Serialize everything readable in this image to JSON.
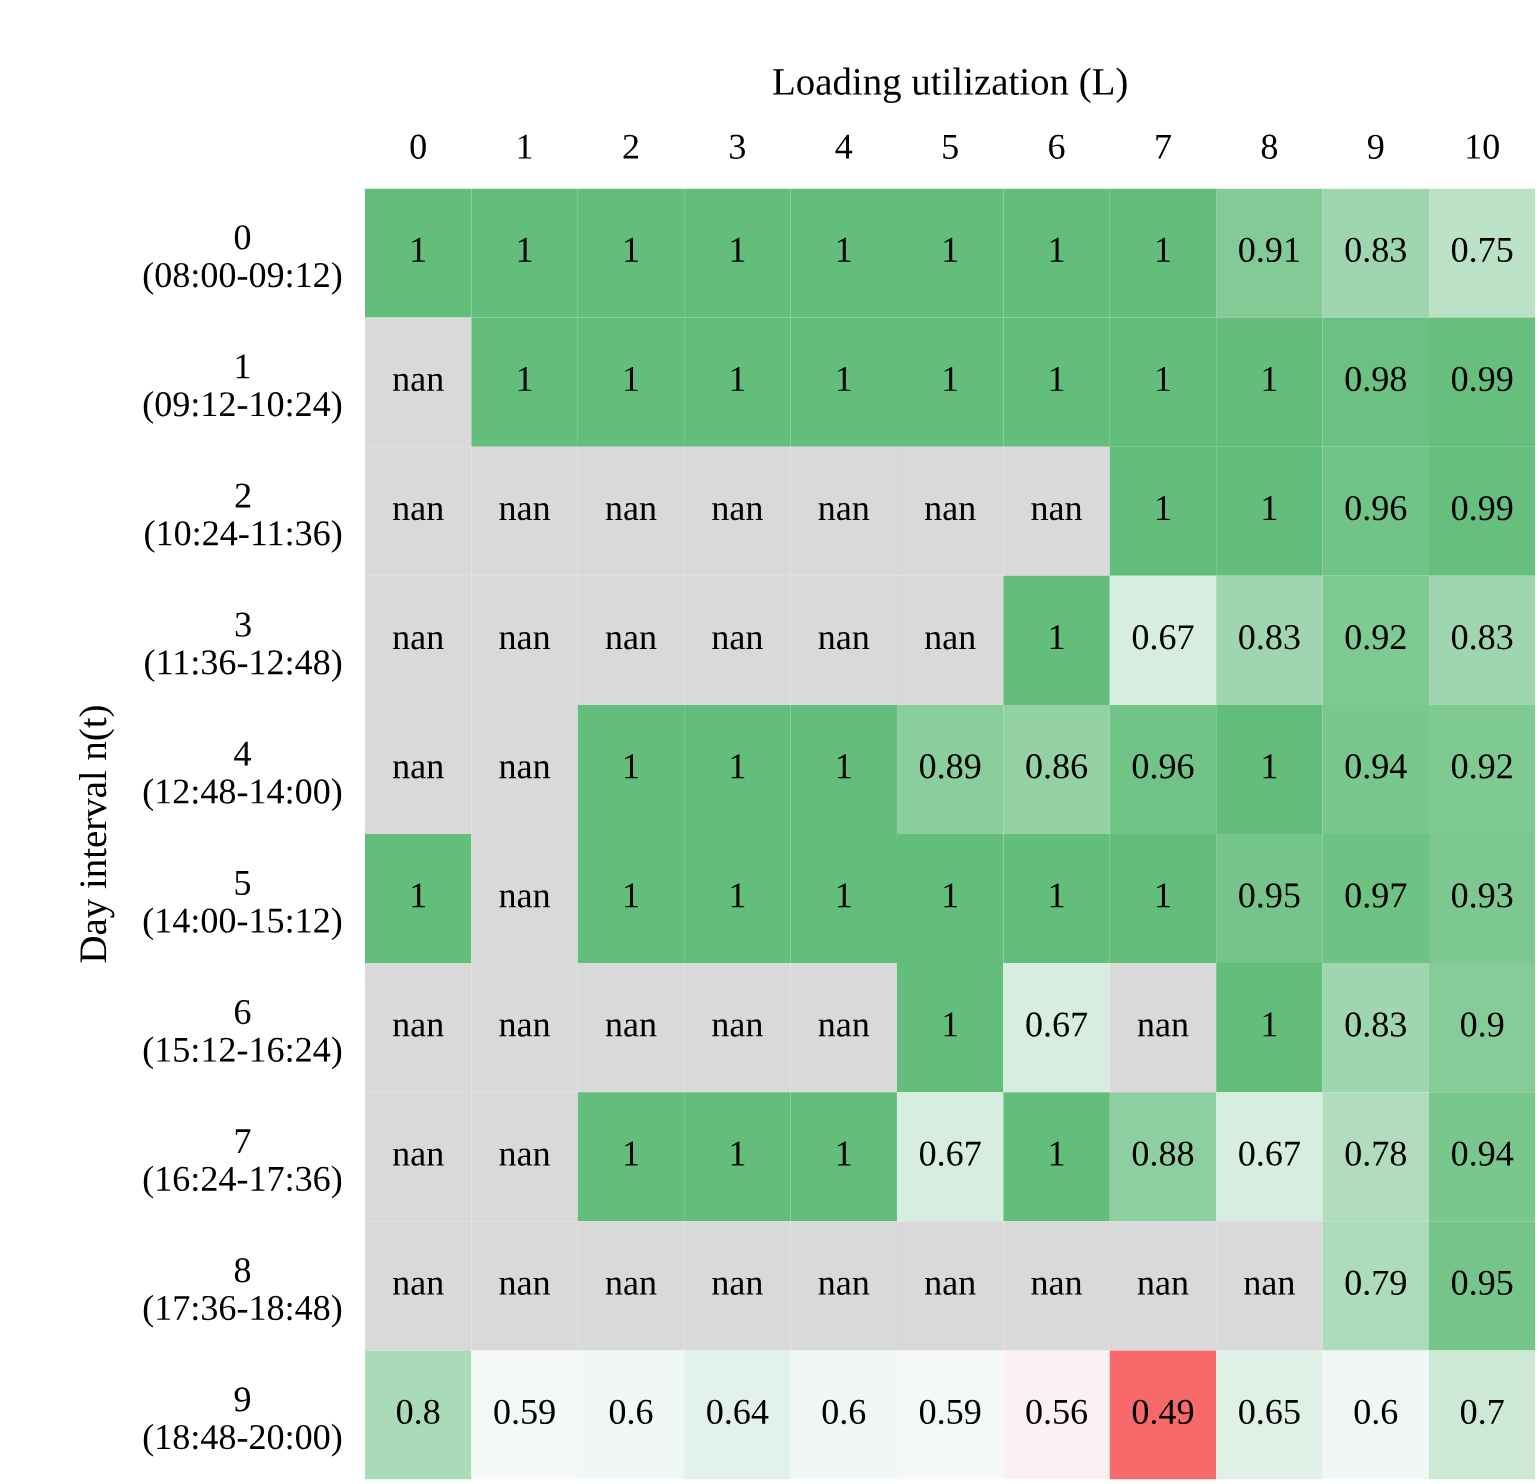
{
  "chart_data": {
    "type": "heatmap",
    "xlabel": "Loading utilization (L)",
    "ylabel": "Day interval n(t)",
    "categories": [
      "0",
      "1",
      "2",
      "3",
      "4",
      "5",
      "6",
      "7",
      "8",
      "9",
      "10"
    ],
    "y_categories": [
      "0\n(08:00-09:12)",
      "1\n(09:12-10:24)",
      "2\n(10:24-11:36)",
      "3\n(11:36-12:48)",
      "4\n(12:48-14:00)",
      "5\n(14:00-15:12)",
      "6\n(15:12-16:24)",
      "7\n(16:24-17:36)",
      "8\n(17:36-18:48)",
      "9\n(18:48-20:00)"
    ],
    "cells": [
      [
        1,
        1,
        1,
        1,
        1,
        1,
        1,
        1,
        0.91,
        0.83,
        0.75
      ],
      [
        null,
        1,
        1,
        1,
        1,
        1,
        1,
        1,
        1,
        0.98,
        0.99
      ],
      [
        null,
        null,
        null,
        null,
        null,
        null,
        null,
        1,
        1,
        0.96,
        0.99
      ],
      [
        null,
        null,
        null,
        null,
        null,
        null,
        1,
        0.67,
        0.83,
        0.92,
        0.83
      ],
      [
        null,
        null,
        1,
        1,
        1,
        0.89,
        0.86,
        0.96,
        1,
        0.94,
        0.92
      ],
      [
        1,
        null,
        1,
        1,
        1,
        1,
        1,
        1,
        0.95,
        0.97,
        0.93
      ],
      [
        null,
        null,
        null,
        null,
        null,
        1,
        0.67,
        null,
        1,
        0.83,
        0.9
      ],
      [
        null,
        null,
        1,
        1,
        1,
        0.67,
        1,
        0.88,
        0.67,
        0.78,
        0.94
      ],
      [
        null,
        null,
        null,
        null,
        null,
        null,
        null,
        null,
        null,
        0.79,
        0.95
      ],
      [
        0.8,
        0.59,
        0.6,
        0.64,
        0.6,
        0.59,
        0.56,
        0.49,
        0.65,
        0.6,
        0.7
      ]
    ],
    "cell_labels": [
      [
        "1",
        "1",
        "1",
        "1",
        "1",
        "1",
        "1",
        "1",
        "0.91",
        "0.83",
        "0.75"
      ],
      [
        "nan",
        "1",
        "1",
        "1",
        "1",
        "1",
        "1",
        "1",
        "1",
        "0.98",
        "0.99"
      ],
      [
        "nan",
        "nan",
        "nan",
        "nan",
        "nan",
        "nan",
        "nan",
        "1",
        "1",
        "0.96",
        "0.99"
      ],
      [
        "nan",
        "nan",
        "nan",
        "nan",
        "nan",
        "nan",
        "1",
        "0.67",
        "0.83",
        "0.92",
        "0.83"
      ],
      [
        "nan",
        "nan",
        "1",
        "1",
        "1",
        "0.89",
        "0.86",
        "0.96",
        "1",
        "0.94",
        "0.92"
      ],
      [
        "1",
        "nan",
        "1",
        "1",
        "1",
        "1",
        "1",
        "1",
        "0.95",
        "0.97",
        "0.93"
      ],
      [
        "nan",
        "nan",
        "nan",
        "nan",
        "nan",
        "1",
        "0.67",
        "nan",
        "1",
        "0.83",
        "0.9"
      ],
      [
        "nan",
        "nan",
        "1",
        "1",
        "1",
        "0.67",
        "1",
        "0.88",
        "0.67",
        "0.78",
        "0.94"
      ],
      [
        "nan",
        "nan",
        "nan",
        "nan",
        "nan",
        "nan",
        "nan",
        "nan",
        "nan",
        "0.79",
        "0.95"
      ],
      [
        "0.8",
        "0.59",
        "0.6",
        "0.64",
        "0.6",
        "0.59",
        "0.56",
        "0.49",
        "0.65",
        "0.6",
        "0.7"
      ]
    ]
  }
}
